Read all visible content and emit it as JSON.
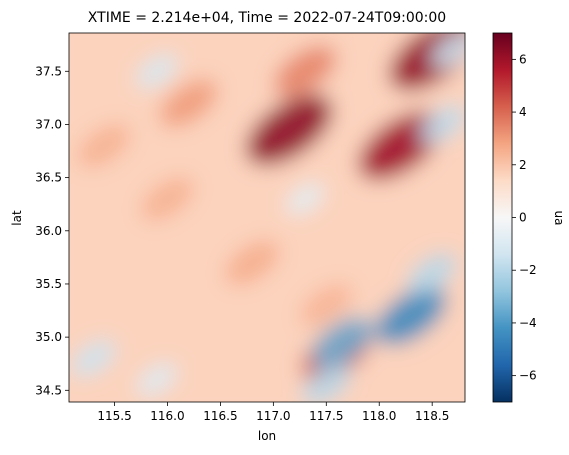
{
  "chart_data": {
    "type": "heatmap",
    "title": "XTIME = 2.214e+04, Time = 2022-07-24T09:00:00",
    "xlabel": "lon",
    "ylabel": "lat",
    "colorbar_label": "ua",
    "colormap": "RdBu_r",
    "xlim": [
      115.07,
      118.81
    ],
    "ylim": [
      34.39,
      37.86
    ],
    "clim": [
      -7,
      7
    ],
    "x_ticks": [
      115.5,
      116.0,
      116.5,
      117.0,
      117.5,
      118.0,
      118.5
    ],
    "x_tick_labels": [
      "115.5",
      "116.0",
      "116.5",
      "117.0",
      "117.5",
      "118.0",
      "118.5"
    ],
    "y_ticks": [
      34.5,
      35.0,
      35.5,
      36.0,
      36.5,
      37.0,
      37.5
    ],
    "y_tick_labels": [
      "34.5",
      "35.0",
      "35.5",
      "36.0",
      "36.5",
      "37.0",
      "37.5"
    ],
    "colorbar_ticks": [
      -6,
      -4,
      -2,
      0,
      2,
      4,
      6
    ],
    "colorbar_tick_labels": [
      "−6",
      "−4",
      "−2",
      "0",
      "2",
      "4",
      "6"
    ],
    "grid": false,
    "features": [
      {
        "lon": 117.15,
        "lat": 36.95,
        "value": 6.3
      },
      {
        "lon": 118.2,
        "lat": 36.8,
        "value": 6.0
      },
      {
        "lon": 118.5,
        "lat": 37.65,
        "value": 6.2
      },
      {
        "lon": 117.3,
        "lat": 37.5,
        "value": 3.5
      },
      {
        "lon": 116.2,
        "lat": 37.2,
        "value": 3.0
      },
      {
        "lon": 116.0,
        "lat": 36.3,
        "value": 2.5
      },
      {
        "lon": 115.4,
        "lat": 36.8,
        "value": 2.5
      },
      {
        "lon": 116.8,
        "lat": 35.7,
        "value": 2.6
      },
      {
        "lon": 117.5,
        "lat": 35.3,
        "value": 2.4
      },
      {
        "lon": 117.6,
        "lat": 34.85,
        "value": 4.5
      },
      {
        "lon": 115.3,
        "lat": 34.8,
        "value": -1.5
      },
      {
        "lon": 115.9,
        "lat": 34.6,
        "value": -1.0
      },
      {
        "lon": 117.5,
        "lat": 34.55,
        "value": -2.0
      },
      {
        "lon": 118.3,
        "lat": 35.2,
        "value": -4.5
      },
      {
        "lon": 117.65,
        "lat": 34.95,
        "value": -3.5
      },
      {
        "lon": 118.5,
        "lat": 35.6,
        "value": -2.0
      },
      {
        "lon": 118.6,
        "lat": 37.0,
        "value": -1.8
      },
      {
        "lon": 115.9,
        "lat": 37.5,
        "value": -1.2
      },
      {
        "lon": 117.3,
        "lat": 36.3,
        "value": -0.8
      },
      {
        "lon": 118.7,
        "lat": 37.7,
        "value": -1.5
      }
    ]
  }
}
